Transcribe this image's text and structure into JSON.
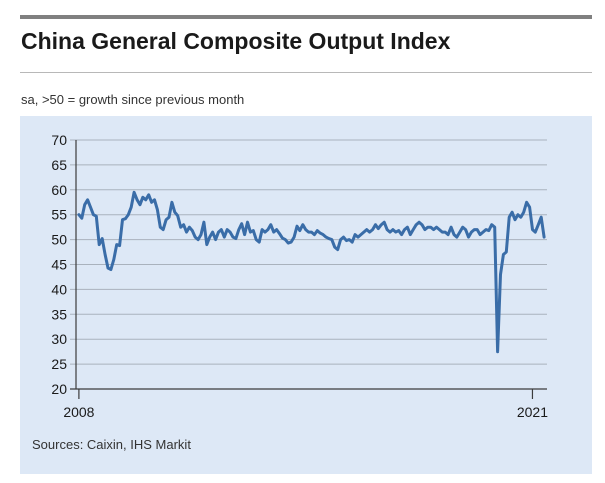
{
  "header": {
    "title": "China General Composite Output Index",
    "subtitle": "sa, >50 = growth since previous month"
  },
  "footer": {
    "source": "Sources: Caixin, IHS Markit"
  },
  "colors": {
    "line": "#3a6da8",
    "panel": "#dde8f6",
    "grid": "#a9b2bd",
    "rule": "#808080"
  },
  "chart_data": {
    "type": "line",
    "title": "China General Composite Output Index",
    "subtitle": "sa, >50 = growth since previous month",
    "xlabel": "",
    "ylabel": "",
    "ylim": [
      20,
      70
    ],
    "yticks": [
      "70",
      "65",
      "60",
      "55",
      "50",
      "45",
      "40",
      "35",
      "30",
      "25",
      "20"
    ],
    "xlim": [
      2007.917,
      2021.417
    ],
    "xtick_labels": [
      "2008",
      "2021"
    ],
    "grid": true,
    "legend": "none",
    "series": [
      {
        "name": "China General Composite Output Index",
        "x": [
          2008.0,
          2008.083,
          2008.167,
          2008.25,
          2008.333,
          2008.417,
          2008.5,
          2008.583,
          2008.667,
          2008.75,
          2008.833,
          2008.917,
          2009.0,
          2009.083,
          2009.167,
          2009.25,
          2009.333,
          2009.417,
          2009.5,
          2009.583,
          2009.667,
          2009.75,
          2009.833,
          2009.917,
          2010.0,
          2010.083,
          2010.167,
          2010.25,
          2010.333,
          2010.417,
          2010.5,
          2010.583,
          2010.667,
          2010.75,
          2010.833,
          2010.917,
          2011.0,
          2011.083,
          2011.167,
          2011.25,
          2011.333,
          2011.417,
          2011.5,
          2011.583,
          2011.667,
          2011.75,
          2011.833,
          2011.917,
          2012.0,
          2012.083,
          2012.167,
          2012.25,
          2012.333,
          2012.417,
          2012.5,
          2012.583,
          2012.667,
          2012.75,
          2012.833,
          2012.917,
          2013.0,
          2013.083,
          2013.167,
          2013.25,
          2013.333,
          2013.417,
          2013.5,
          2013.583,
          2013.667,
          2013.75,
          2013.833,
          2013.917,
          2014.0,
          2014.083,
          2014.167,
          2014.25,
          2014.333,
          2014.417,
          2014.5,
          2014.583,
          2014.667,
          2014.75,
          2014.833,
          2014.917,
          2015.0,
          2015.083,
          2015.167,
          2015.25,
          2015.333,
          2015.417,
          2015.5,
          2015.583,
          2015.667,
          2015.75,
          2015.833,
          2015.917,
          2016.0,
          2016.083,
          2016.167,
          2016.25,
          2016.333,
          2016.417,
          2016.5,
          2016.583,
          2016.667,
          2016.75,
          2016.833,
          2016.917,
          2017.0,
          2017.083,
          2017.167,
          2017.25,
          2017.333,
          2017.417,
          2017.5,
          2017.583,
          2017.667,
          2017.75,
          2017.833,
          2017.917,
          2018.0,
          2018.083,
          2018.167,
          2018.25,
          2018.333,
          2018.417,
          2018.5,
          2018.583,
          2018.667,
          2018.75,
          2018.833,
          2018.917,
          2019.0,
          2019.083,
          2019.167,
          2019.25,
          2019.333,
          2019.417,
          2019.5,
          2019.583,
          2019.667,
          2019.75,
          2019.833,
          2019.917,
          2020.0,
          2020.083,
          2020.167,
          2020.25,
          2020.333,
          2020.417,
          2020.5,
          2020.583,
          2020.667,
          2020.75,
          2020.833,
          2020.917,
          2021.0,
          2021.083,
          2021.167,
          2021.25,
          2021.333
        ],
        "values": [
          55.0,
          54.3,
          57.0,
          58.0,
          56.5,
          55.0,
          54.7,
          49.0,
          50.2,
          47.0,
          44.3,
          44.0,
          46.0,
          49.0,
          48.8,
          54.0,
          54.2,
          55.0,
          56.5,
          59.5,
          58.0,
          57.0,
          58.5,
          58.0,
          59.0,
          57.5,
          58.0,
          56.0,
          52.5,
          52.0,
          54.0,
          54.5,
          57.5,
          55.5,
          54.8,
          52.5,
          53.0,
          51.5,
          52.5,
          51.8,
          50.5,
          50.0,
          51.0,
          53.5,
          49.0,
          50.5,
          51.5,
          50.0,
          51.5,
          52.0,
          50.5,
          52.0,
          51.5,
          50.5,
          50.2,
          52.0,
          53.2,
          51.0,
          53.5,
          51.5,
          51.8,
          50.0,
          49.5,
          52.0,
          51.5,
          52.0,
          53.0,
          51.5,
          52.0,
          51.2,
          50.3,
          50.0,
          49.3,
          49.5,
          50.5,
          52.7,
          51.8,
          53.0,
          52.0,
          51.5,
          51.5,
          51.0,
          51.8,
          51.3,
          51.0,
          50.5,
          50.2,
          50.0,
          48.5,
          48.0,
          50.0,
          50.5,
          49.8,
          50.0,
          49.5,
          51.0,
          50.5,
          51.0,
          51.5,
          52.0,
          51.5,
          52.0,
          53.0,
          52.2,
          53.0,
          53.5,
          52.0,
          51.5,
          52.0,
          51.5,
          51.8,
          51.0,
          52.0,
          52.5,
          51.0,
          52.0,
          53.0,
          53.5,
          53.0,
          52.0,
          52.5,
          52.5,
          52.0,
          52.5,
          52.0,
          51.5,
          51.5,
          51.0,
          52.5,
          51.0,
          50.5,
          51.5,
          52.5,
          52.0,
          50.5,
          51.5,
          52.0,
          52.0,
          51.0,
          51.5,
          52.0,
          51.8,
          53.0,
          52.5,
          27.5,
          43.0,
          47.0,
          47.5,
          54.5,
          55.5,
          54.0,
          55.0,
          54.5,
          55.5,
          57.5,
          56.5,
          52.0,
          51.5,
          53.0,
          54.5,
          50.5
        ]
      }
    ]
  }
}
